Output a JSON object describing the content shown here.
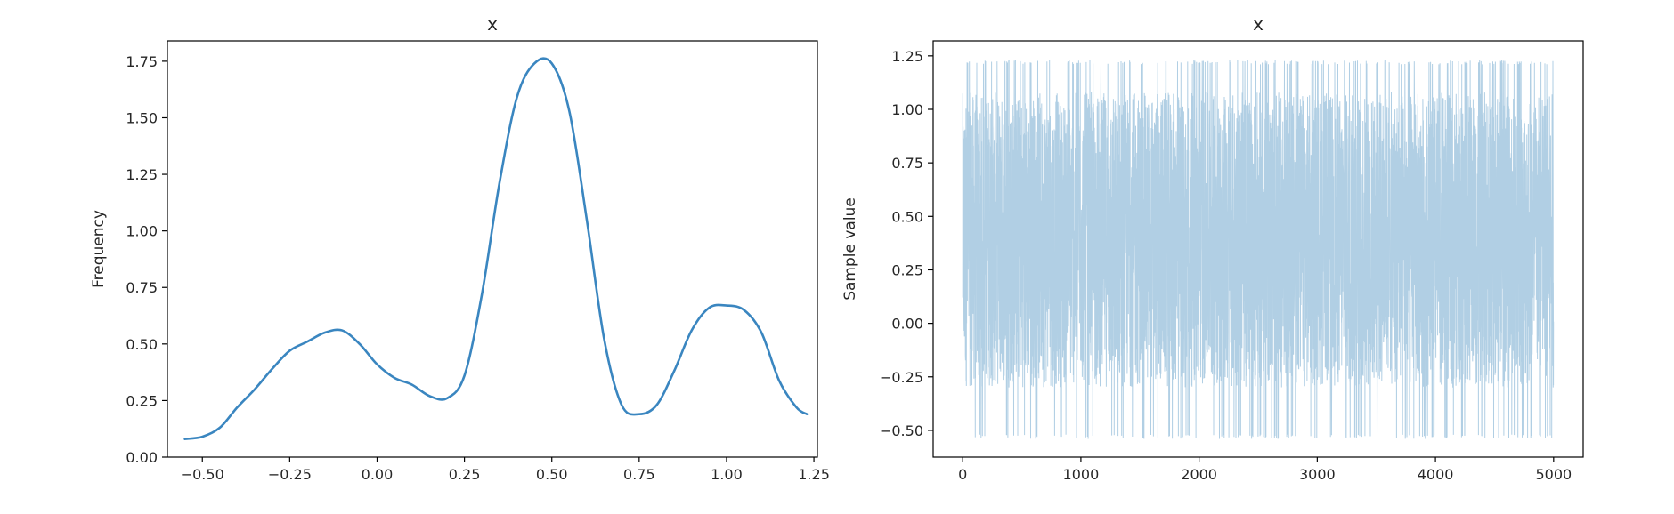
{
  "chart_data": [
    {
      "type": "line",
      "title": "x",
      "xlabel": "",
      "ylabel": "Frequency",
      "xlim": [
        -0.6,
        1.26
      ],
      "ylim": [
        0,
        1.84
      ],
      "xticks": [
        -0.5,
        -0.25,
        0.0,
        0.25,
        0.5,
        0.75,
        1.0,
        1.25
      ],
      "xtick_labels": [
        "−0.50",
        "−0.25",
        "0.00",
        "0.25",
        "0.50",
        "0.75",
        "1.00",
        "1.25"
      ],
      "yticks": [
        0,
        0.25,
        0.5,
        0.75,
        1.0,
        1.25,
        1.5,
        1.75
      ],
      "ytick_labels": [
        "0.00",
        "0.25",
        "0.50",
        "0.75",
        "1.00",
        "1.25",
        "1.50",
        "1.75"
      ],
      "grid": false,
      "color": "#3a86c0",
      "series": [
        {
          "x": [
            -0.55,
            -0.5,
            -0.45,
            -0.4,
            -0.35,
            -0.3,
            -0.25,
            -0.2,
            -0.15,
            -0.1,
            -0.05,
            0.0,
            0.05,
            0.1,
            0.15,
            0.2,
            0.25,
            0.3,
            0.35,
            0.4,
            0.45,
            0.5,
            0.55,
            0.6,
            0.65,
            0.7,
            0.75,
            0.8,
            0.85,
            0.9,
            0.95,
            1.0,
            1.05,
            1.1,
            1.15,
            1.2,
            1.23
          ],
          "y": [
            0.08,
            0.09,
            0.13,
            0.22,
            0.3,
            0.39,
            0.47,
            0.51,
            0.55,
            0.56,
            0.5,
            0.41,
            0.35,
            0.32,
            0.27,
            0.26,
            0.36,
            0.72,
            1.21,
            1.59,
            1.74,
            1.74,
            1.53,
            1.05,
            0.52,
            0.23,
            0.19,
            0.23,
            0.38,
            0.56,
            0.66,
            0.67,
            0.65,
            0.55,
            0.34,
            0.22,
            0.19
          ]
        }
      ]
    },
    {
      "type": "line",
      "title": "x",
      "xlabel": "",
      "ylabel": "Sample value",
      "xlim": [
        -250,
        5250
      ],
      "ylim": [
        -0.625,
        1.32
      ],
      "xticks": [
        0,
        1000,
        2000,
        3000,
        4000,
        5000
      ],
      "xtick_labels": [
        "0",
        "1000",
        "2000",
        "3000",
        "4000",
        "5000"
      ],
      "yticks": [
        -0.5,
        -0.25,
        0.0,
        0.25,
        0.5,
        0.75,
        1.0,
        1.25
      ],
      "ytick_labels": [
        "−0.50",
        "−0.25",
        "0.00",
        "0.25",
        "0.50",
        "0.75",
        "1.00",
        "1.25"
      ],
      "grid": false,
      "color": "#b1cfe4",
      "n_samples": 5000,
      "sample_range": [
        -0.54,
        1.23
      ],
      "band_core": [
        -0.3,
        1.08
      ]
    }
  ]
}
